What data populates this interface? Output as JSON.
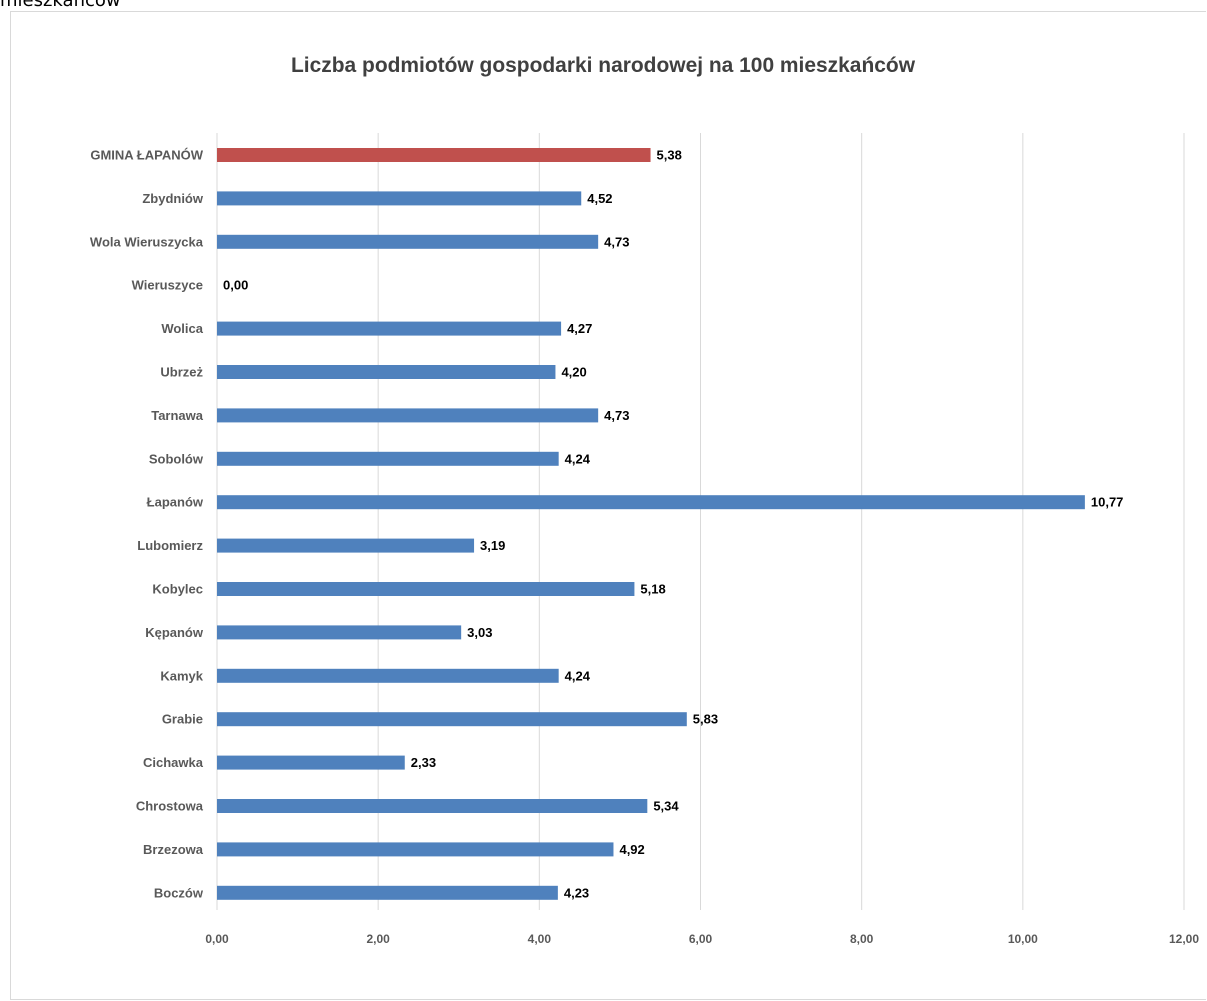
{
  "caption_fragment": "mieszkańców",
  "chart_data": {
    "type": "bar",
    "orientation": "horizontal",
    "title": "Liczba podmiotów gospodarki narodowej na 100 mieszkańców",
    "categories": [
      "GMINA ŁAPANÓW",
      "Zbydniów",
      "Wola Wieruszycka",
      "Wieruszyce",
      "Wolica",
      "Ubrzeż",
      "Tarnawa",
      "Sobolów",
      "Łapanów",
      "Lubomierz",
      "Kobylec",
      "Kępanów",
      "Kamyk",
      "Grabie",
      "Cichawka",
      "Chrostowa",
      "Brzezowa",
      "Boczów"
    ],
    "values": [
      5.38,
      4.52,
      4.73,
      0.0,
      4.27,
      4.2,
      4.73,
      4.24,
      10.77,
      3.19,
      5.18,
      3.03,
      4.24,
      5.83,
      2.33,
      5.34,
      4.92,
      4.23
    ],
    "data_labels": [
      "5,38",
      "4,52",
      "4,73",
      "0,00",
      "4,27",
      "4,20",
      "4,73",
      "4,24",
      "10,77",
      "3,19",
      "5,18",
      "3,03",
      "4,24",
      "5,83",
      "2,33",
      "5,34",
      "4,92",
      "4,23"
    ],
    "xlim": [
      0,
      12
    ],
    "x_ticks": [
      0,
      2,
      4,
      6,
      8,
      10,
      12
    ],
    "x_tick_labels": [
      "0,00",
      "2,00",
      "4,00",
      "6,00",
      "8,00",
      "10,00",
      "12,00"
    ],
    "grid": "vertical",
    "colors": {
      "highlight": "#c0504d",
      "default": "#4f81bd",
      "grid": "#d9d9d9",
      "text": "#404040"
    },
    "highlight_index": 0
  }
}
